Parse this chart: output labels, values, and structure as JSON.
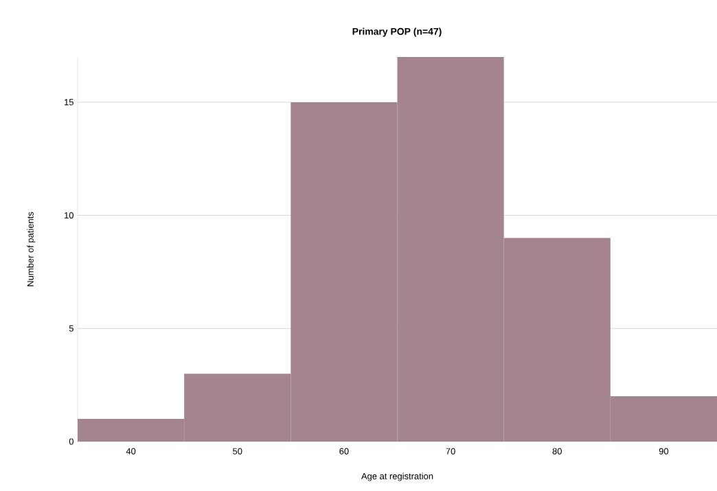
{
  "chart_data": {
    "type": "histogram",
    "title": "**Primary POP (n=47)**",
    "xlabel": "Age at registration",
    "ylabel": "Number of patients",
    "bins": [
      35,
      45,
      55,
      65,
      75,
      85,
      95
    ],
    "values": [
      1,
      3,
      15,
      17,
      9,
      2
    ],
    "color": "#a4858f",
    "xlim": [
      35,
      95
    ],
    "ylim": [
      0,
      17
    ],
    "xticks": [
      40,
      50,
      60,
      70,
      80,
      90
    ],
    "yticks": [
      0,
      5,
      10,
      15
    ],
    "grid": "y"
  }
}
